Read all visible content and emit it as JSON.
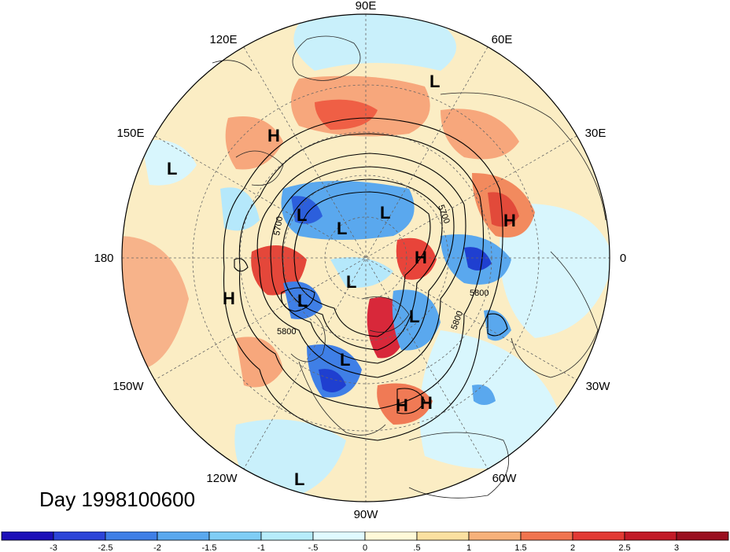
{
  "map": {
    "projection": "north-polar-stereographic",
    "longitude_labels": [
      "90E",
      "60E",
      "30E",
      "0",
      "30W",
      "60W",
      "90W",
      "120W",
      "150W",
      "180",
      "150E",
      "120E"
    ],
    "contour_labels": [
      "5700",
      "5700",
      "5800",
      "5800",
      "5800"
    ],
    "pressure_centers": [
      "L",
      "H",
      "H",
      "L",
      "L",
      "L",
      "H",
      "L",
      "H",
      "H",
      "L",
      "L",
      "L",
      "L",
      "H",
      "L"
    ],
    "colors": {
      "strong_negative": "#1a2fd0",
      "negative": "#5aa8ee",
      "weak_negative": "#dff7ff",
      "weak_positive": "#fcefc6",
      "positive": "#f48a5a",
      "strong_positive": "#cc1d26"
    }
  },
  "title": "Day 1998100600",
  "colorbar": {
    "tick_labels": [
      "-3",
      "-2.5",
      "-2",
      "-1.5",
      "-1",
      "-.5",
      "0",
      ".5",
      "1",
      "1.5",
      "2",
      "2.5",
      "3"
    ],
    "colors": [
      "#1c0fb8",
      "#2c45d8",
      "#3f7fe6",
      "#5aa8ee",
      "#7fcdf5",
      "#b6ecfb",
      "#e0faff",
      "#fff9d8",
      "#fbe0a0",
      "#f7b17a",
      "#f0744f",
      "#e23a34",
      "#c21a27",
      "#9a0f1f"
    ]
  }
}
